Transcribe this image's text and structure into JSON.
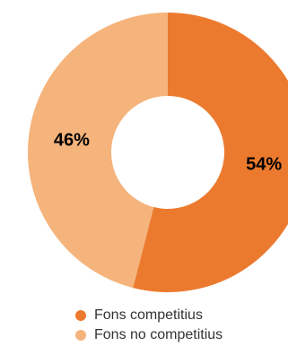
{
  "chart_data": {
    "type": "pie",
    "style": "donut",
    "categories": [
      "Fons competitius",
      "Fons no competitius"
    ],
    "values": [
      54,
      46
    ],
    "labels": [
      "54%",
      "46%"
    ],
    "colors": [
      "#EC7A2E",
      "#F5B47C"
    ],
    "title": "",
    "legend_position": "bottom"
  }
}
